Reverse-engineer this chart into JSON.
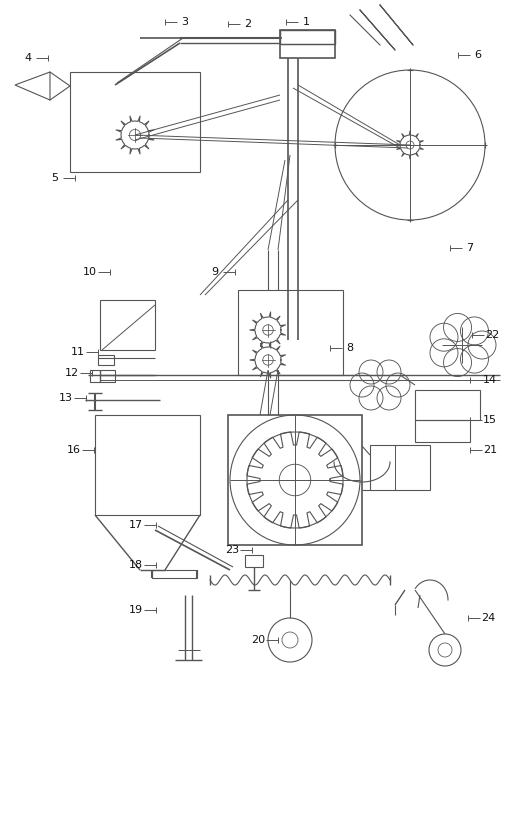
{
  "fig_w": 5.24,
  "fig_h": 8.14,
  "dpi": 100,
  "lc": "#555555",
  "lw": 0.8
}
